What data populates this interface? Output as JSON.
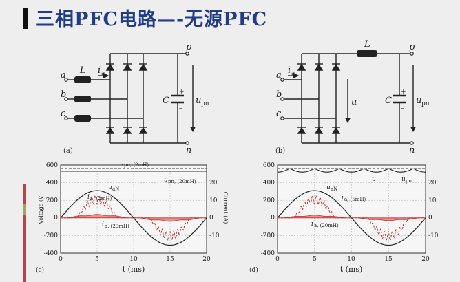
{
  "slide": {
    "title": "三相PFC电路—-无源PFC",
    "accent_colors": {
      "title": "#1f3b8c",
      "strip_top": "#b5444b",
      "strip_mid": "#9aa85a",
      "strip_bottom": "#b5444b",
      "fill": "#e87878",
      "fill_stroke": "#c03030"
    }
  },
  "circuit_a": {
    "panel": "(a)",
    "nodes": {
      "a": "a",
      "b": "b",
      "c": "c",
      "p": "p",
      "n": "n"
    },
    "inductor": "L",
    "current": "i",
    "current_sub": "a",
    "capacitor": "C",
    "plus": "+",
    "minus": "–",
    "voltage": "u",
    "voltage_sub": "pn"
  },
  "circuit_b": {
    "panel": "(b)",
    "nodes": {
      "a": "a",
      "b": "b",
      "c": "c",
      "p": "p",
      "n": "n"
    },
    "inductor": "L",
    "current": "i",
    "current_sub": "a",
    "dc_voltage": "u",
    "capacitor": "C",
    "plus": "+",
    "minus": "–",
    "voltage": "u",
    "voltage_sub": "pn"
  },
  "plot_c": {
    "panel": "(c)",
    "xlabel": "t (ms)",
    "ylabel_left": "Voltage (v)",
    "ylabel_right": "Current (A)",
    "x_ticks": [
      "0",
      "5",
      "10",
      "15",
      "20"
    ],
    "y_left_ticks": [
      "600",
      "400",
      "200",
      "0",
      "-200",
      "-400"
    ],
    "y_right_ticks": [
      "20",
      "10",
      "0",
      "-10"
    ],
    "labels": {
      "upn_2": "u",
      "upn_2_sub": "pn, (2mH)",
      "upn_20": "u",
      "upn_20_sub": "pn, (20mH)",
      "uan": "u",
      "uan_sub": "aN",
      "ia_2": "i",
      "ia_2_sub": "a, (2mH)",
      "ia_20": "i",
      "ia_20_sub": "a, (20mH)"
    }
  },
  "plot_d": {
    "panel": "(d)",
    "xlabel": "t (ms)",
    "x_ticks": [
      "0",
      "5",
      "10",
      "15",
      "20"
    ],
    "y_left_ticks": [
      "600",
      "400",
      "200",
      "0",
      "-200",
      "-400"
    ],
    "y_right_ticks": [
      "20",
      "10",
      "0",
      "-10"
    ],
    "labels": {
      "u": "u",
      "upn": "u",
      "upn_sub": "pn",
      "uan": "u",
      "uan_sub": "aN",
      "ia_5": "i",
      "ia_5_sub": "a, (5mH)",
      "ia_20": "i",
      "ia_20_sub": "a, (20mH)"
    }
  }
}
